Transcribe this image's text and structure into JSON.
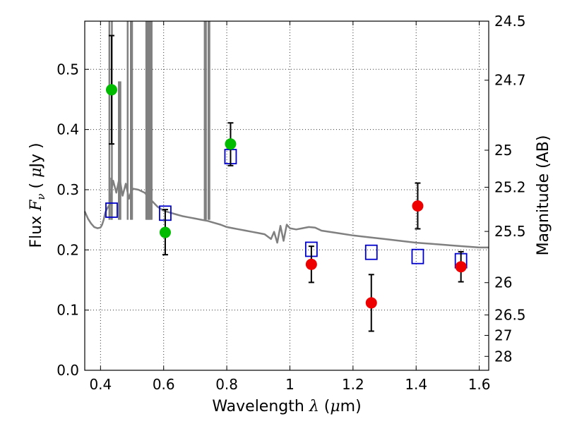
{
  "chart_data": {
    "type": "scatter",
    "title": "",
    "xlabel": "Wavelength  λ (μm)",
    "xlabel_parts": {
      "text": "Wavelength  ",
      "symbol": "λ",
      "unit_open": " (",
      "unit_symbol": "μ",
      "unit_rest": "m)"
    },
    "ylabel": "Flux  Fν  ( μJy )",
    "ylabel_parts": {
      "text": "Flux  ",
      "symbol": "F",
      "subscript": "ν",
      "unit_open": "  ( ",
      "unit_symbol": "μ",
      "unit_rest": "Jy )"
    },
    "y2label": "Magnitude (AB)",
    "xlim": [
      0.35,
      1.63
    ],
    "ylim": [
      0.0,
      0.58
    ],
    "grid": true,
    "x_ticks": [
      {
        "value": 0.4,
        "label": "0.4"
      },
      {
        "value": 0.6,
        "label": "0.6"
      },
      {
        "value": 0.8,
        "label": "0.8"
      },
      {
        "value": 1.0,
        "label": "1"
      },
      {
        "value": 1.2,
        "label": "1.2"
      },
      {
        "value": 1.4,
        "label": "1.4"
      },
      {
        "value": 1.6,
        "label": "1.6"
      }
    ],
    "y_ticks": [
      {
        "value": 0.0,
        "label": "0.0"
      },
      {
        "value": 0.1,
        "label": "0.1"
      },
      {
        "value": 0.2,
        "label": "0.2"
      },
      {
        "value": 0.3,
        "label": "0.3"
      },
      {
        "value": 0.4,
        "label": "0.4"
      },
      {
        "value": 0.5,
        "label": "0.5"
      }
    ],
    "y2_ticks": [
      {
        "label": "24.5",
        "flux": 0.58
      },
      {
        "label": "24.7",
        "flux": 0.4819
      },
      {
        "label": "25",
        "flux": 0.3656
      },
      {
        "label": "25.2",
        "flux": 0.3041
      },
      {
        "label": "25.5",
        "flux": 0.2307
      },
      {
        "label": "26",
        "flux": 0.1456
      },
      {
        "label": "26.5",
        "flux": 0.0919
      },
      {
        "label": "27",
        "flux": 0.058
      },
      {
        "label": "28",
        "flux": 0.0231
      }
    ],
    "series": [
      {
        "kind": "model_spectrum",
        "color": "#808080",
        "x": [
          0.35,
          0.36,
          0.37,
          0.38,
          0.39,
          0.4,
          0.405,
          0.41,
          0.415,
          0.42,
          0.425,
          0.43,
          0.435,
          0.44,
          0.45,
          0.46,
          0.47,
          0.48,
          0.49,
          0.5,
          0.52,
          0.54,
          0.56,
          0.58,
          0.6,
          0.62,
          0.64,
          0.66,
          0.68,
          0.7,
          0.72,
          0.74,
          0.76,
          0.78,
          0.8,
          0.82,
          0.84,
          0.86,
          0.88,
          0.9,
          0.92,
          0.94,
          0.95,
          0.96,
          0.97,
          0.98,
          0.99,
          1.0,
          1.02,
          1.04,
          1.06,
          1.08,
          1.1,
          1.15,
          1.2,
          1.25,
          1.3,
          1.35,
          1.4,
          1.45,
          1.5,
          1.55,
          1.6,
          1.63
        ],
        "y": [
          0.264,
          0.252,
          0.244,
          0.238,
          0.236,
          0.237,
          0.242,
          0.25,
          0.262,
          0.268,
          0.272,
          0.276,
          0.3,
          0.315,
          0.295,
          0.32,
          0.29,
          0.31,
          0.285,
          0.302,
          0.3,
          0.295,
          0.283,
          0.272,
          0.265,
          0.262,
          0.259,
          0.256,
          0.254,
          0.252,
          0.25,
          0.248,
          0.245,
          0.242,
          0.238,
          0.236,
          0.234,
          0.232,
          0.23,
          0.228,
          0.226,
          0.218,
          0.23,
          0.212,
          0.24,
          0.215,
          0.242,
          0.236,
          0.234,
          0.236,
          0.238,
          0.237,
          0.232,
          0.228,
          0.224,
          0.221,
          0.218,
          0.215,
          0.212,
          0.21,
          0.208,
          0.206,
          0.204,
          0.204
        ]
      },
      {
        "kind": "model_emission_lines",
        "color": "#808080",
        "x": [
          0.428,
          0.434,
          0.436,
          0.458,
          0.463,
          0.486,
          0.496,
          0.5,
          0.545,
          0.548,
          0.551,
          0.553,
          0.556,
          0.559,
          0.562,
          0.73,
          0.734,
          0.742,
          0.745
        ],
        "y_top": [
          0.58,
          0.32,
          0.58,
          0.48,
          0.48,
          0.58,
          0.58,
          0.58,
          0.58,
          0.58,
          0.58,
          0.58,
          0.58,
          0.58,
          0.58,
          0.58,
          0.58,
          0.58,
          0.58
        ]
      },
      {
        "kind": "model_photometry",
        "color": "#0000cc",
        "marker": "open-square",
        "x": [
          0.435,
          0.605,
          0.812,
          1.068,
          1.258,
          1.405,
          1.542
        ],
        "y": [
          0.266,
          0.261,
          0.355,
          0.201,
          0.196,
          0.189,
          0.182
        ]
      },
      {
        "kind": "observed_flux",
        "color": "#00bb00",
        "marker": "filled-circle",
        "x": [
          0.435,
          0.605,
          0.812
        ],
        "y": [
          0.466,
          0.229,
          0.376
        ],
        "err_low": [
          0.376,
          0.192,
          0.34
        ],
        "err_high": [
          0.556,
          0.267,
          0.411
        ]
      },
      {
        "kind": "observed_flux",
        "color": "#ee0000",
        "marker": "filled-circle",
        "x": [
          1.068,
          1.258,
          1.405,
          1.542
        ],
        "y": [
          0.176,
          0.112,
          0.273,
          0.172
        ],
        "err_low": [
          0.146,
          0.065,
          0.235,
          0.147
        ],
        "err_high": [
          0.206,
          0.159,
          0.311,
          0.197
        ]
      }
    ]
  }
}
